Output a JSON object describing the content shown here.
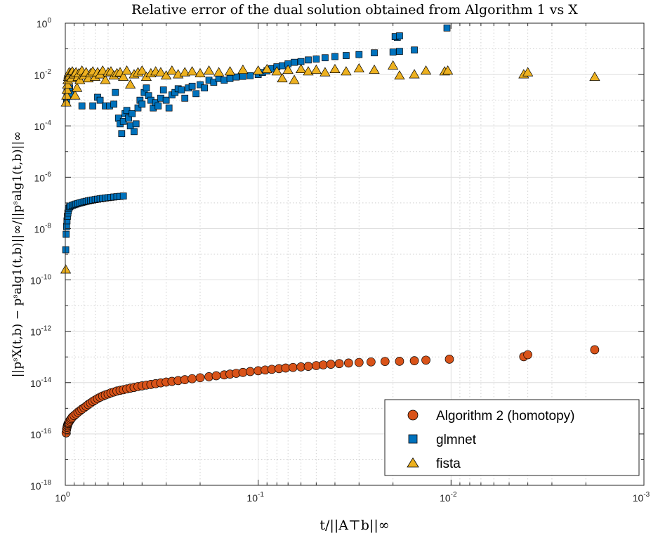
{
  "chart_data": {
    "type": "scatter",
    "title": "Relative error of the dual solution obtained from Algorithm 1 vs X",
    "xlabel": "t/||A⊤b||∞",
    "ylabel": "||pˢX(t,b) − pˢalg1(t,b)||∞/||pˢalg1(t,b)||∞",
    "x_scale": "log",
    "x_reversed": true,
    "y_scale": "log",
    "xlim": [
      1,
      0.001
    ],
    "ylim": [
      1e-18,
      1
    ],
    "xticks": [
      1,
      0.1,
      0.01,
      0.001
    ],
    "xtick_labels": [
      {
        "base": "10",
        "exp": "0"
      },
      {
        "base": "10",
        "exp": "-1"
      },
      {
        "base": "10",
        "exp": "-2"
      },
      {
        "base": "10",
        "exp": "-3"
      }
    ],
    "ytick_labels": [
      {
        "base": "10",
        "exp": "0"
      },
      {
        "base": "10",
        "exp": "-2"
      },
      {
        "base": "10",
        "exp": "-4"
      },
      {
        "base": "10",
        "exp": "-6"
      },
      {
        "base": "10",
        "exp": "-8"
      },
      {
        "base": "10",
        "exp": "-10"
      },
      {
        "base": "10",
        "exp": "-12"
      },
      {
        "base": "10",
        "exp": "-14"
      },
      {
        "base": "10",
        "exp": "-16"
      },
      {
        "base": "10",
        "exp": "-18"
      }
    ],
    "grid": true,
    "legend_position": "bottom-right",
    "series": [
      {
        "name": "Algorithm 2 (homotopy)",
        "marker": "circle",
        "color": "#D95319",
        "points": [
          [
            0.99,
            1.1e-16
          ],
          [
            0.985,
            1.5e-16
          ],
          [
            0.98,
            1.8e-16
          ],
          [
            0.975,
            2.1e-16
          ],
          [
            0.97,
            2.4e-16
          ],
          [
            0.965,
            2.6e-16
          ],
          [
            0.96,
            2.8e-16
          ],
          [
            0.95,
            3.2e-16
          ],
          [
            0.94,
            3.6e-16
          ],
          [
            0.93,
            4e-16
          ],
          [
            0.92,
            4.5e-16
          ],
          [
            0.9,
            5.2e-16
          ],
          [
            0.88,
            6e-16
          ],
          [
            0.86,
            7e-16
          ],
          [
            0.84,
            8e-16
          ],
          [
            0.82,
            9.2e-16
          ],
          [
            0.8,
            1.05e-15
          ],
          [
            0.78,
            1.2e-15
          ],
          [
            0.76,
            1.4e-15
          ],
          [
            0.74,
            1.6e-15
          ],
          [
            0.72,
            1.85e-15
          ],
          [
            0.7,
            2.1e-15
          ],
          [
            0.68,
            2.4e-15
          ],
          [
            0.66,
            2.7e-15
          ],
          [
            0.64,
            3e-15
          ],
          [
            0.62,
            3.3e-15
          ],
          [
            0.6,
            3.6e-15
          ],
          [
            0.58,
            4e-15
          ],
          [
            0.56,
            4.3e-15
          ],
          [
            0.54,
            4.7e-15
          ],
          [
            0.52,
            5e-15
          ],
          [
            0.5,
            5.3e-15
          ],
          [
            0.48,
            5.7e-15
          ],
          [
            0.46,
            6.1e-15
          ],
          [
            0.44,
            6.5e-15
          ],
          [
            0.42,
            7e-15
          ],
          [
            0.4,
            7.5e-15
          ],
          [
            0.38,
            8e-15
          ],
          [
            0.36,
            8.5e-15
          ],
          [
            0.34,
            9.1e-15
          ],
          [
            0.32,
            9.8e-15
          ],
          [
            0.3,
            1.05e-14
          ],
          [
            0.28,
            1.12e-14
          ],
          [
            0.26,
            1.2e-14
          ],
          [
            0.24,
            1.3e-14
          ],
          [
            0.22,
            1.42e-14
          ],
          [
            0.2,
            1.55e-14
          ],
          [
            0.18,
            1.7e-14
          ],
          [
            0.165,
            1.85e-14
          ],
          [
            0.15,
            2e-14
          ],
          [
            0.14,
            2.15e-14
          ],
          [
            0.13,
            2.3e-14
          ],
          [
            0.12,
            2.5e-14
          ],
          [
            0.11,
            2.7e-14
          ],
          [
            0.1,
            2.9e-14
          ],
          [
            0.092,
            3.1e-14
          ],
          [
            0.085,
            3.3e-14
          ],
          [
            0.078,
            3.5e-14
          ],
          [
            0.072,
            3.7e-14
          ],
          [
            0.066,
            3.9e-14
          ],
          [
            0.06,
            4.1e-14
          ],
          [
            0.055,
            4.3e-14
          ],
          [
            0.05,
            4.6e-14
          ],
          [
            0.046,
            4.9e-14
          ],
          [
            0.042,
            5.2e-14
          ],
          [
            0.038,
            5.5e-14
          ],
          [
            0.034,
            5.8e-14
          ],
          [
            0.03,
            6.1e-14
          ],
          [
            0.026,
            6.4e-14
          ],
          [
            0.022,
            6.7e-14
          ],
          [
            0.0185,
            6.8e-14
          ],
          [
            0.0155,
            7.1e-14
          ],
          [
            0.0135,
            7.5e-14
          ],
          [
            0.0102,
            8.2e-14
          ],
          [
            0.0042,
            1.02e-13
          ],
          [
            0.004,
            1.22e-13
          ],
          [
            0.0018,
            1.9e-13
          ]
        ]
      },
      {
        "name": "glmnet",
        "marker": "square",
        "color": "#0072BD",
        "points": [
          [
            0.995,
            1.5e-09
          ],
          [
            0.99,
            6e-09
          ],
          [
            0.985,
            1.2e-08
          ],
          [
            0.98,
            2e-08
          ],
          [
            0.975,
            3e-08
          ],
          [
            0.97,
            4e-08
          ],
          [
            0.965,
            5e-08
          ],
          [
            0.96,
            6e-08
          ],
          [
            0.95,
            7e-08
          ],
          [
            0.94,
            7.5e-08
          ],
          [
            0.92,
            8e-08
          ],
          [
            0.9,
            8.5e-08
          ],
          [
            0.88,
            9e-08
          ],
          [
            0.86,
            9.5e-08
          ],
          [
            0.84,
            1e-07
          ],
          [
            0.82,
            1.05e-07
          ],
          [
            0.8,
            1.1e-07
          ],
          [
            0.78,
            1.15e-07
          ],
          [
            0.76,
            1.2e-07
          ],
          [
            0.74,
            1.25e-07
          ],
          [
            0.72,
            1.3e-07
          ],
          [
            0.7,
            1.35e-07
          ],
          [
            0.68,
            1.4e-07
          ],
          [
            0.66,
            1.45e-07
          ],
          [
            0.64,
            1.5e-07
          ],
          [
            0.62,
            1.55e-07
          ],
          [
            0.6,
            1.6e-07
          ],
          [
            0.58,
            1.65e-07
          ],
          [
            0.56,
            1.7e-07
          ],
          [
            0.54,
            1.75e-07
          ],
          [
            0.52,
            1.8e-07
          ],
          [
            0.5,
            1.85e-07
          ],
          [
            0.985,
            0.001
          ],
          [
            0.98,
            0.002
          ],
          [
            0.97,
            0.0015
          ],
          [
            0.96,
            0.0025
          ],
          [
            0.95,
            0.003
          ],
          [
            0.94,
            0.0018
          ],
          [
            0.82,
            0.0006
          ],
          [
            0.72,
            0.0006
          ],
          [
            0.68,
            0.0013
          ],
          [
            0.66,
            0.001
          ],
          [
            0.62,
            0.0006
          ],
          [
            0.59,
            0.0006
          ],
          [
            0.56,
            0.0007
          ],
          [
            0.55,
            0.002
          ],
          [
            0.53,
            0.0002
          ],
          [
            0.52,
            0.00012
          ],
          [
            0.51,
            5e-05
          ],
          [
            0.5,
            0.00015
          ],
          [
            0.49,
            0.0003
          ],
          [
            0.48,
            0.0004
          ],
          [
            0.47,
            0.0002
          ],
          [
            0.46,
            0.0001
          ],
          [
            0.45,
            0.0003
          ],
          [
            0.44,
            6e-05
          ],
          [
            0.43,
            0.00012
          ],
          [
            0.42,
            0.0005
          ],
          [
            0.41,
            0.001
          ],
          [
            0.4,
            0.0007
          ],
          [
            0.39,
            0.002
          ],
          [
            0.38,
            0.003
          ],
          [
            0.37,
            0.0015
          ],
          [
            0.36,
            0.001
          ],
          [
            0.35,
            0.0005
          ],
          [
            0.34,
            0.0008
          ],
          [
            0.33,
            0.0006
          ],
          [
            0.32,
            0.0012
          ],
          [
            0.31,
            0.0025
          ],
          [
            0.3,
            0.001
          ],
          [
            0.29,
            0.0005
          ],
          [
            0.28,
            0.0016
          ],
          [
            0.27,
            0.002
          ],
          [
            0.26,
            0.0028
          ],
          [
            0.25,
            0.0025
          ],
          [
            0.24,
            0.0012
          ],
          [
            0.23,
            0.003
          ],
          [
            0.22,
            0.0035
          ],
          [
            0.21,
            0.0018
          ],
          [
            0.2,
            0.004
          ],
          [
            0.19,
            0.003
          ],
          [
            0.18,
            0.006
          ],
          [
            0.17,
            0.005
          ],
          [
            0.16,
            0.007
          ],
          [
            0.15,
            0.006
          ],
          [
            0.14,
            0.007
          ],
          [
            0.13,
            0.008
          ],
          [
            0.12,
            0.0085
          ],
          [
            0.11,
            0.009
          ],
          [
            0.1,
            0.01
          ],
          [
            0.095,
            0.012
          ],
          [
            0.09,
            0.014
          ],
          [
            0.085,
            0.017
          ],
          [
            0.08,
            0.02
          ],
          [
            0.075,
            0.022
          ],
          [
            0.07,
            0.026
          ],
          [
            0.065,
            0.03
          ],
          [
            0.06,
            0.032
          ],
          [
            0.055,
            0.037
          ],
          [
            0.05,
            0.04
          ],
          [
            0.045,
            0.045
          ],
          [
            0.04,
            0.05
          ],
          [
            0.035,
            0.055
          ],
          [
            0.03,
            0.06
          ],
          [
            0.025,
            0.07
          ],
          [
            0.02,
            0.075
          ],
          [
            0.0185,
            0.08
          ],
          [
            0.0155,
            0.09
          ],
          [
            0.019,
            0.28
          ],
          [
            0.0195,
            0.3
          ],
          [
            0.0185,
            0.32
          ],
          [
            0.0105,
            0.65
          ]
        ]
      },
      {
        "name": "fista",
        "marker": "triangle",
        "color": "#EDB120",
        "points": [
          [
            0.995,
            2.5e-10
          ],
          [
            0.99,
            0.0008
          ],
          [
            0.985,
            0.0015
          ],
          [
            0.98,
            0.0025
          ],
          [
            0.975,
            0.004
          ],
          [
            0.97,
            0.006
          ],
          [
            0.965,
            0.008
          ],
          [
            0.96,
            0.01
          ],
          [
            0.955,
            0.012
          ],
          [
            0.95,
            0.009
          ],
          [
            0.94,
            0.011
          ],
          [
            0.93,
            0.007
          ],
          [
            0.92,
            0.013
          ],
          [
            0.9,
            0.01
          ],
          [
            0.89,
            0.0015
          ],
          [
            0.88,
            0.012
          ],
          [
            0.87,
            0.003
          ],
          [
            0.86,
            0.008
          ],
          [
            0.85,
            0.011
          ],
          [
            0.84,
            0.006
          ],
          [
            0.82,
            0.014
          ],
          [
            0.8,
            0.009
          ],
          [
            0.78,
            0.012
          ],
          [
            0.76,
            0.007
          ],
          [
            0.74,
            0.011
          ],
          [
            0.72,
            0.013
          ],
          [
            0.7,
            0.008
          ],
          [
            0.68,
            0.012
          ],
          [
            0.66,
            0.01
          ],
          [
            0.64,
            0.014
          ],
          [
            0.62,
            0.006
          ],
          [
            0.6,
            0.012
          ],
          [
            0.58,
            0.013
          ],
          [
            0.56,
            0.009
          ],
          [
            0.54,
            0.011
          ],
          [
            0.52,
            0.012
          ],
          [
            0.5,
            0.008
          ],
          [
            0.48,
            0.014
          ],
          [
            0.46,
            0.004
          ],
          [
            0.44,
            0.01
          ],
          [
            0.42,
            0.012
          ],
          [
            0.4,
            0.014
          ],
          [
            0.38,
            0.008
          ],
          [
            0.36,
            0.011
          ],
          [
            0.34,
            0.013
          ],
          [
            0.32,
            0.012
          ],
          [
            0.3,
            0.009
          ],
          [
            0.28,
            0.014
          ],
          [
            0.26,
            0.01
          ],
          [
            0.24,
            0.012
          ],
          [
            0.22,
            0.013
          ],
          [
            0.2,
            0.011
          ],
          [
            0.18,
            0.014
          ],
          [
            0.16,
            0.012
          ],
          [
            0.14,
            0.013
          ],
          [
            0.12,
            0.015
          ],
          [
            0.1,
            0.014
          ],
          [
            0.09,
            0.016
          ],
          [
            0.08,
            0.013
          ],
          [
            0.075,
            0.007
          ],
          [
            0.07,
            0.015
          ],
          [
            0.065,
            0.006
          ],
          [
            0.06,
            0.016
          ],
          [
            0.055,
            0.013
          ],
          [
            0.05,
            0.015
          ],
          [
            0.045,
            0.012
          ],
          [
            0.04,
            0.016
          ],
          [
            0.035,
            0.013
          ],
          [
            0.03,
            0.017
          ],
          [
            0.025,
            0.015
          ],
          [
            0.02,
            0.022
          ],
          [
            0.0185,
            0.009
          ],
          [
            0.0155,
            0.01
          ],
          [
            0.0135,
            0.014
          ],
          [
            0.0108,
            0.013
          ],
          [
            0.0104,
            0.014
          ],
          [
            0.0042,
            0.01
          ],
          [
            0.004,
            0.012
          ],
          [
            0.0018,
            0.008
          ]
        ]
      }
    ]
  }
}
